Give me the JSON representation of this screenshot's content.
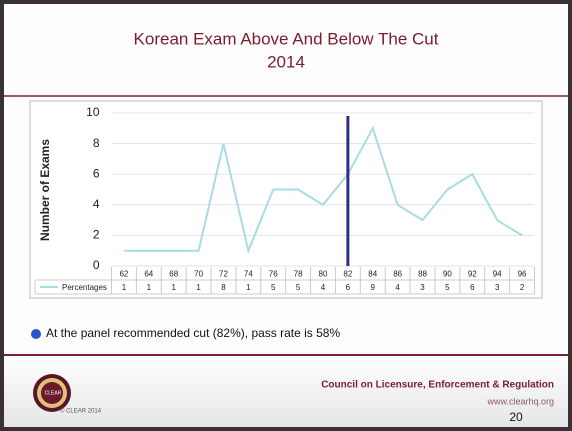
{
  "slide": {
    "bullet": "At the panel recommended cut (82%), pass rate is 58%",
    "logo_text": "CLEAR",
    "copyright": "© CLEAR 2014",
    "org": "Council on Licensure, Enforcement & Regulation",
    "url": "www.clearhq.org",
    "page": "20"
  },
  "chart_data": {
    "type": "line",
    "title": "Korean Exam Above And Below The Cut",
    "subtitle": "2014",
    "y_label": "Number of Exams",
    "categories": [
      "62",
      "64",
      "68",
      "70",
      "72",
      "74",
      "76",
      "78",
      "80",
      "82",
      "84",
      "86",
      "88",
      "90",
      "92",
      "94",
      "96"
    ],
    "series": [
      {
        "name": "Percentages",
        "color": "#a9dbe4",
        "values": [
          1,
          1,
          1,
          1,
          8,
          1,
          5,
          5,
          4,
          6,
          9,
          4,
          3,
          5,
          6,
          3,
          2
        ]
      }
    ],
    "ylim": [
      0,
      10
    ],
    "yticks": [
      0,
      2,
      4,
      6,
      8,
      10
    ],
    "grid": true,
    "cut_at": "82",
    "cut_color": "#2b2f8a",
    "data_table": true
  }
}
